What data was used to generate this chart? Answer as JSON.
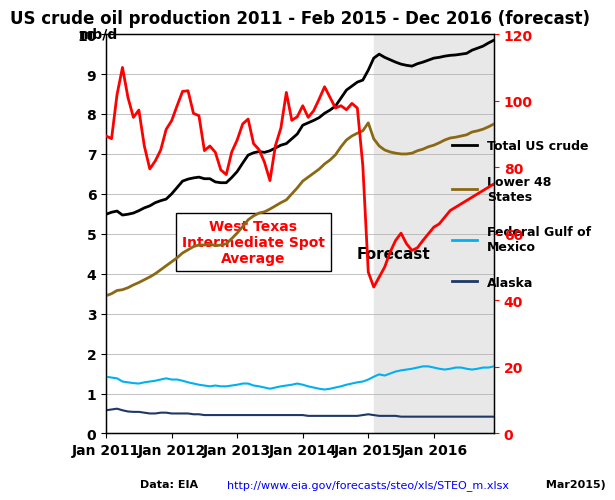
{
  "title": "US crude oil production 2011 - Feb 2015 - Dec 2016 (forecast)",
  "ylabel_left": "mb/d",
  "ylabel_right": "",
  "source_text": "Data: EIA http://www.eia.gov/forecasts/steo/xls/STEO_m.xlsx Mar2015)",
  "source_url": "http://www.eia.gov/forecasts/steo/xls/STEO_m.xlsx",
  "forecast_start_index": 49,
  "xtick_labels": [
    "Jan 2011",
    "Jan 2012",
    "Jan 2013",
    "Jan 2014",
    "Jan 2015",
    "Jan 2016"
  ],
  "xtick_positions": [
    0,
    12,
    24,
    36,
    48,
    60
  ],
  "ylim_left": [
    0,
    10
  ],
  "ylim_right": [
    0,
    120
  ],
  "yticks_left": [
    0,
    1,
    2,
    3,
    4,
    5,
    6,
    7,
    8,
    9,
    10
  ],
  "yticks_right": [
    0,
    20,
    40,
    60,
    80,
    100,
    120
  ],
  "total_us": [
    5.49,
    5.54,
    5.57,
    5.47,
    5.49,
    5.52,
    5.58,
    5.65,
    5.7,
    5.78,
    5.83,
    5.87,
    6.0,
    6.16,
    6.32,
    6.37,
    6.4,
    6.42,
    6.38,
    6.38,
    6.3,
    6.28,
    6.28,
    6.41,
    6.56,
    6.77,
    6.97,
    7.03,
    7.06,
    7.04,
    7.08,
    7.15,
    7.22,
    7.26,
    7.38,
    7.5,
    7.72,
    7.78,
    7.84,
    7.91,
    8.02,
    8.1,
    8.2,
    8.4,
    8.6,
    8.7,
    8.8,
    8.85,
    9.1,
    9.4,
    9.5,
    9.42,
    9.36,
    9.3,
    9.25,
    9.22,
    9.2,
    9.26,
    9.3,
    9.35,
    9.4,
    9.42,
    9.45,
    9.47,
    9.48,
    9.5,
    9.52,
    9.6,
    9.65,
    9.7,
    9.78,
    9.85
  ],
  "lower48": [
    3.45,
    3.5,
    3.58,
    3.6,
    3.65,
    3.72,
    3.78,
    3.85,
    3.92,
    4.0,
    4.1,
    4.2,
    4.3,
    4.4,
    4.52,
    4.6,
    4.68,
    4.72,
    4.72,
    4.75,
    4.7,
    4.72,
    4.75,
    4.88,
    5.02,
    5.18,
    5.35,
    5.45,
    5.52,
    5.55,
    5.62,
    5.7,
    5.78,
    5.85,
    6.0,
    6.15,
    6.32,
    6.42,
    6.52,
    6.62,
    6.75,
    6.85,
    6.98,
    7.18,
    7.35,
    7.45,
    7.52,
    7.58,
    7.78,
    7.38,
    7.2,
    7.1,
    7.05,
    7.02,
    7.0,
    7.0,
    7.02,
    7.08,
    7.12,
    7.18,
    7.22,
    7.28,
    7.35,
    7.4,
    7.42,
    7.45,
    7.48,
    7.55,
    7.58,
    7.62,
    7.68,
    7.75
  ],
  "gulf_mexico": [
    1.42,
    1.4,
    1.38,
    1.3,
    1.28,
    1.26,
    1.25,
    1.28,
    1.3,
    1.32,
    1.35,
    1.38,
    1.35,
    1.35,
    1.32,
    1.28,
    1.25,
    1.22,
    1.2,
    1.18,
    1.2,
    1.18,
    1.18,
    1.2,
    1.22,
    1.25,
    1.25,
    1.2,
    1.18,
    1.15,
    1.12,
    1.15,
    1.18,
    1.2,
    1.22,
    1.25,
    1.22,
    1.18,
    1.15,
    1.12,
    1.1,
    1.12,
    1.15,
    1.18,
    1.22,
    1.25,
    1.28,
    1.3,
    1.35,
    1.42,
    1.48,
    1.45,
    1.5,
    1.55,
    1.58,
    1.6,
    1.62,
    1.65,
    1.68,
    1.68,
    1.65,
    1.62,
    1.6,
    1.62,
    1.65,
    1.65,
    1.62,
    1.6,
    1.62,
    1.65,
    1.65,
    1.68
  ],
  "alaska": [
    0.58,
    0.6,
    0.62,
    0.58,
    0.55,
    0.54,
    0.54,
    0.52,
    0.5,
    0.5,
    0.52,
    0.52,
    0.5,
    0.5,
    0.5,
    0.5,
    0.48,
    0.48,
    0.46,
    0.46,
    0.46,
    0.46,
    0.46,
    0.46,
    0.46,
    0.46,
    0.46,
    0.46,
    0.46,
    0.46,
    0.46,
    0.46,
    0.46,
    0.46,
    0.46,
    0.46,
    0.46,
    0.44,
    0.44,
    0.44,
    0.44,
    0.44,
    0.44,
    0.44,
    0.44,
    0.44,
    0.44,
    0.46,
    0.48,
    0.46,
    0.44,
    0.44,
    0.44,
    0.44,
    0.42,
    0.42,
    0.42,
    0.42,
    0.42,
    0.42,
    0.42,
    0.42,
    0.42,
    0.42,
    0.42,
    0.42,
    0.42,
    0.42,
    0.42,
    0.42,
    0.42,
    0.42
  ],
  "wti": [
    89.4,
    88.6,
    101.8,
    110.0,
    101.0,
    95.0,
    97.2,
    86.4,
    79.5,
    81.9,
    85.2,
    91.4,
    94.0,
    98.5,
    102.8,
    103.0,
    96.2,
    95.5,
    85.0,
    86.4,
    84.5,
    79.2,
    77.8,
    84.6,
    88.2,
    93.0,
    94.5,
    87.1,
    85.3,
    81.5,
    76.0,
    86.5,
    91.8,
    102.5,
    94.1,
    95.2,
    98.5,
    95.0,
    97.0,
    100.5,
    104.2,
    101.0,
    97.8,
    98.5,
    97.3,
    99.2,
    97.8,
    80.5,
    48.5,
    44.0,
    47.0,
    50.0,
    54.5,
    58.0,
    60.2,
    57.0,
    55.0,
    55.8,
    58.0,
    60.0,
    62.0,
    63.0,
    65.0,
    67.0,
    68.0,
    69.0,
    70.0,
    71.0,
    72.0,
    73.0,
    74.0,
    75.0
  ],
  "colors": {
    "total_us": "#000000",
    "lower48": "#8B6914",
    "gulf_mexico": "#00B0F0",
    "alaska": "#1F3864",
    "wti": "#FF0000",
    "forecast_bg": "#E8E8E8",
    "annotation_box": "#FFFFFF",
    "annotation_text": "#FF0000"
  },
  "wti_annotation": "West Texas\nIntermediate Spot\nAverage",
  "forecast_annotation": "Forecast"
}
